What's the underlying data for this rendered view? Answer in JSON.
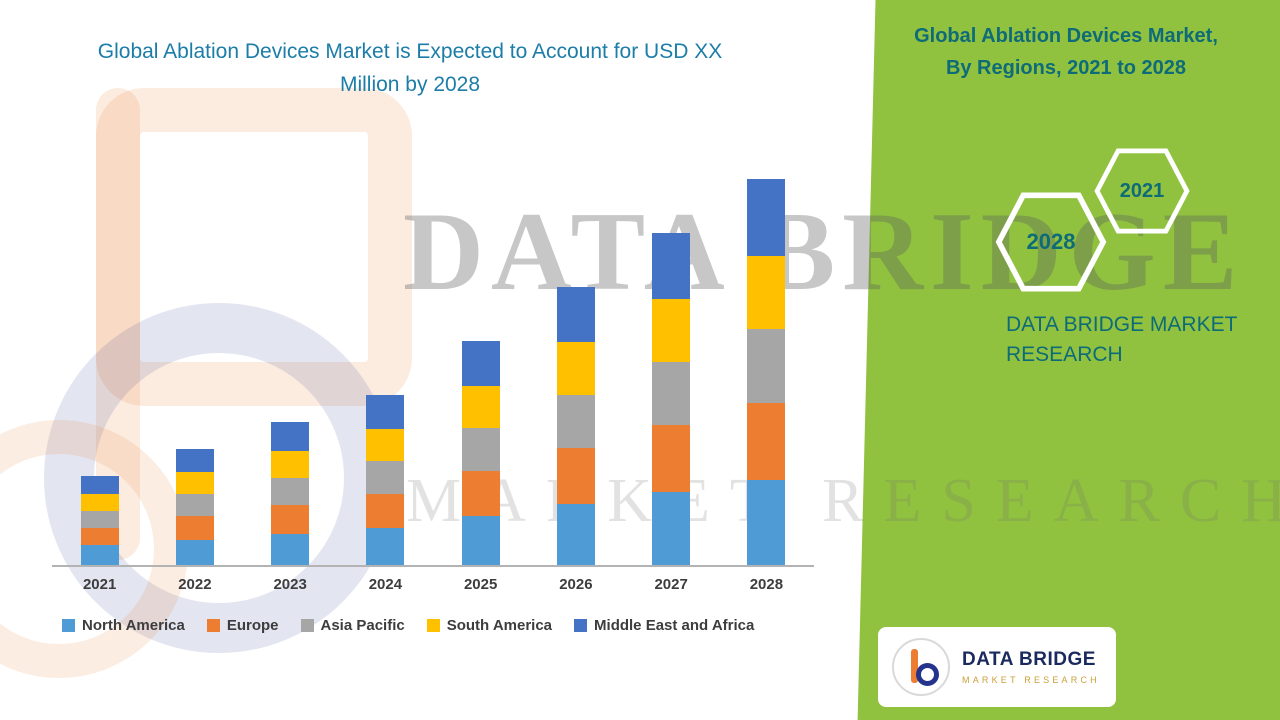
{
  "left": {
    "title": "Global Ablation Devices Market is Expected to Account for USD XX Million by 2028"
  },
  "right": {
    "title_line1": "Global Ablation Devices Market,",
    "title_line2": "By Regions, 2021 to 2028",
    "hexagon_years": [
      "2028",
      "2021"
    ],
    "brand_caption": "DATA BRIDGE MARKET RESEARCH"
  },
  "watermark": {
    "title": "DATA BRIDGE",
    "subtitle": "MARKET RESEARCH"
  },
  "logo_card": {
    "brand": "DATA BRIDGE",
    "tagline": "MARKET RESEARCH"
  },
  "colors": {
    "panel_green": "#90C23F",
    "teal_heading": "#0E6B78",
    "left_title_blue": "#1C7DA8",
    "logo_navy": "#1B2A5E",
    "logo_gold": "#C9A13B"
  },
  "chart_data": {
    "type": "bar",
    "stacked": true,
    "title": "Global Ablation Devices Market is Expected to Account for USD XX Million by 2028",
    "xlabel": "",
    "ylabel": "",
    "categories": [
      "2021",
      "2022",
      "2023",
      "2024",
      "2025",
      "2026",
      "2027",
      "2028"
    ],
    "series": [
      {
        "name": "North America",
        "color": "#4E9BD5",
        "values": [
          5.1,
          6.6,
          8.1,
          9.7,
          12.8,
          15.8,
          18.9,
          22.0
        ]
      },
      {
        "name": "Europe",
        "color": "#ED7D31",
        "values": [
          4.6,
          6.0,
          7.4,
          8.8,
          11.6,
          14.4,
          17.2,
          20.0
        ]
      },
      {
        "name": "Asia Pacific",
        "color": "#A6A6A6",
        "values": [
          4.4,
          5.7,
          7.0,
          8.4,
          11.0,
          13.7,
          16.3,
          19.0
        ]
      },
      {
        "name": "South America",
        "color": "#FFC000",
        "values": [
          4.4,
          5.7,
          7.0,
          8.4,
          11.0,
          13.7,
          16.3,
          19.0
        ]
      },
      {
        "name": "Middle East and Africa",
        "color": "#4472C4",
        "values": [
          4.6,
          6.0,
          7.4,
          8.8,
          11.6,
          14.4,
          17.2,
          20.0
        ]
      }
    ],
    "ylim": [
      0,
      104
    ],
    "y_axis_labels_visible": false,
    "grid": false,
    "legend_position": "bottom"
  }
}
